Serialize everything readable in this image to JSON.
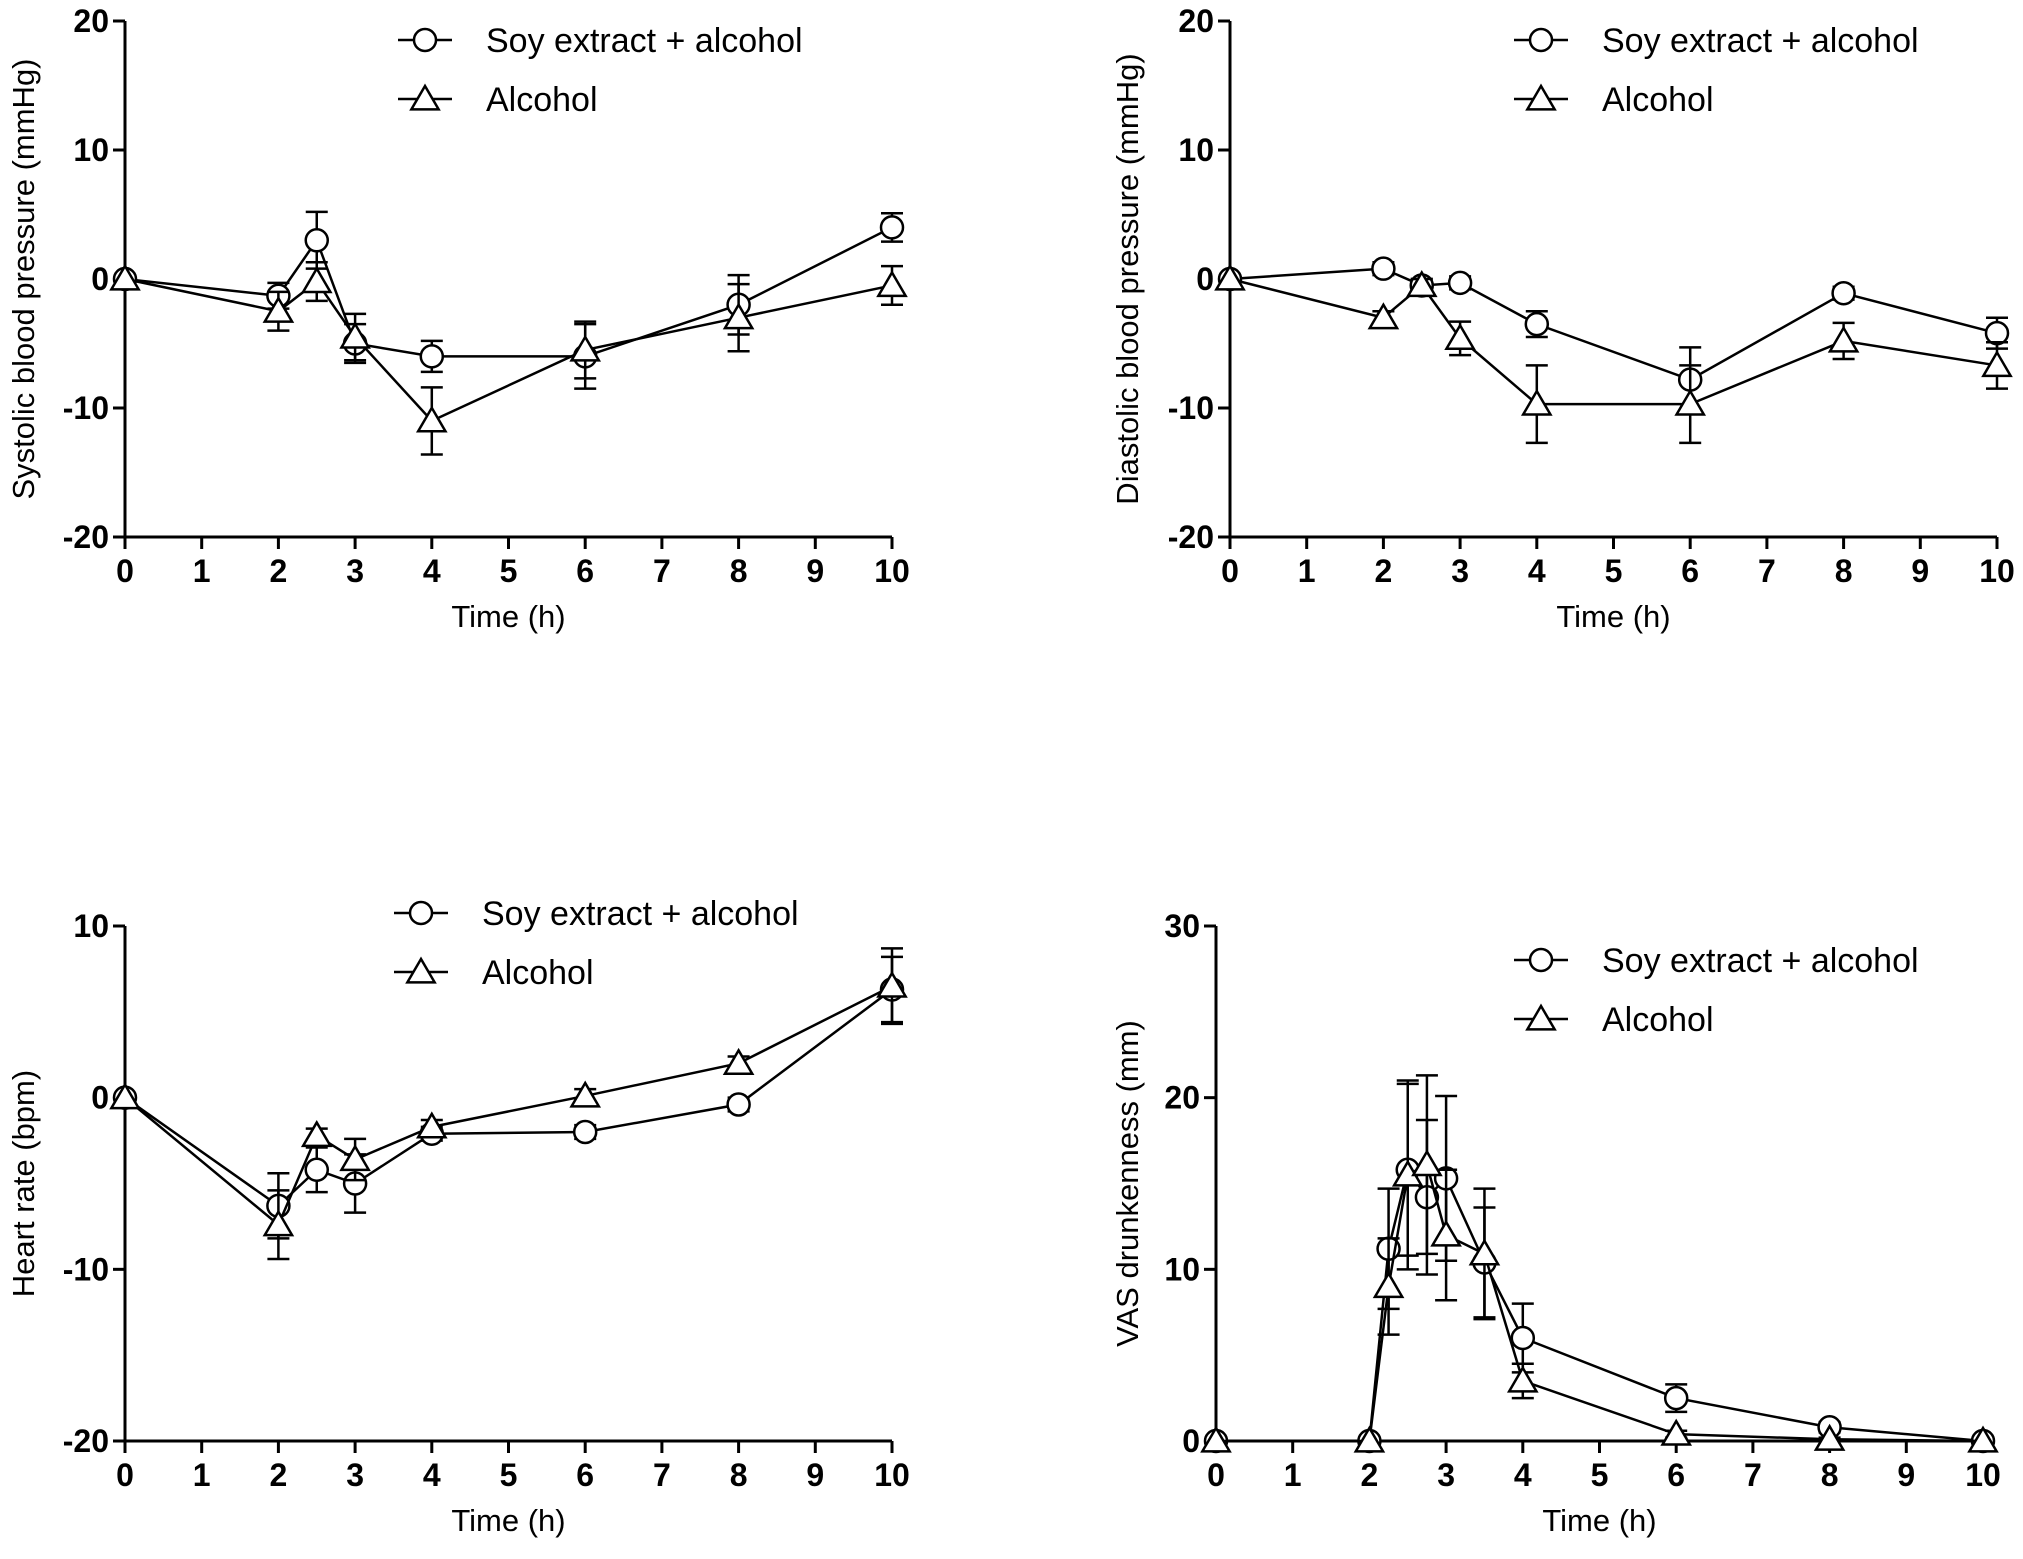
{
  "chart_data": [
    {
      "id": "systolic",
      "type": "line",
      "xlabel": "Time (h)",
      "ylabel": "Systolic blood pressure (mmHg)",
      "ylim": [
        -20,
        20
      ],
      "yticks": [
        -20,
        -10,
        0,
        10,
        20
      ],
      "xlim": [
        0,
        10
      ],
      "xticks": [
        0,
        1,
        2,
        3,
        4,
        5,
        6,
        7,
        8,
        9,
        10
      ],
      "legend": [
        "Soy extract + alcohol",
        "Alcohol"
      ],
      "series": [
        {
          "name": "Soy extract + alcohol",
          "marker": "circle",
          "x": [
            0,
            2,
            2.5,
            3,
            4,
            6,
            8,
            10
          ],
          "y": [
            0,
            -1.3,
            3,
            -5,
            -6,
            -6,
            -2,
            4
          ],
          "err": [
            0,
            1,
            2.2,
            1.5,
            1.2,
            2.5,
            2.3,
            1.1
          ]
        },
        {
          "name": "Alcohol",
          "marker": "triangle",
          "x": [
            0,
            2,
            2.5,
            3,
            4,
            6,
            8,
            10
          ],
          "y": [
            0,
            -2.5,
            -0.2,
            -4.5,
            -11,
            -5.5,
            -3,
            -0.5
          ],
          "err": [
            0,
            1.5,
            1.5,
            1.8,
            2.6,
            2.2,
            2.6,
            1.5
          ]
        }
      ]
    },
    {
      "id": "diastolic",
      "type": "line",
      "xlabel": "Time (h)",
      "ylabel": "Diastolic blood pressure (mmHg)",
      "ylim": [
        -20,
        20
      ],
      "yticks": [
        -20,
        -10,
        0,
        10,
        20
      ],
      "xlim": [
        0,
        10
      ],
      "xticks": [
        0,
        1,
        2,
        3,
        4,
        5,
        6,
        7,
        8,
        9,
        10
      ],
      "legend": [
        "Soy extract + alcohol",
        "Alcohol"
      ],
      "series": [
        {
          "name": "Soy extract + alcohol",
          "marker": "circle",
          "x": [
            0,
            2,
            2.5,
            3,
            4,
            6,
            8,
            10
          ],
          "y": [
            0,
            0.8,
            -0.5,
            -0.3,
            -3.5,
            -7.8,
            -1.1,
            -4.2
          ],
          "err": [
            0,
            0.5,
            0.5,
            0.5,
            1,
            2.5,
            0.5,
            1.2
          ]
        },
        {
          "name": "Alcohol",
          "marker": "triangle",
          "x": [
            0,
            2,
            2.5,
            3,
            4,
            6,
            8,
            10
          ],
          "y": [
            0,
            -3,
            -0.5,
            -4.6,
            -9.7,
            -9.7,
            -4.8,
            -6.7
          ],
          "err": [
            0,
            0.5,
            0.5,
            1.3,
            3,
            3,
            1.4,
            1.8
          ]
        }
      ]
    },
    {
      "id": "heart-rate",
      "type": "line",
      "xlabel": "Time (h)",
      "ylabel": "Heart rate (bpm)",
      "ylim": [
        -20,
        10
      ],
      "yticks": [
        -20,
        -10,
        0,
        10
      ],
      "xlim": [
        0,
        10
      ],
      "xticks": [
        0,
        1,
        2,
        3,
        4,
        5,
        6,
        7,
        8,
        9,
        10
      ],
      "legend": [
        "Soy extract + alcohol",
        "Alcohol"
      ],
      "series": [
        {
          "name": "Soy extract + alcohol",
          "marker": "circle",
          "x": [
            0,
            2,
            2.5,
            3,
            4,
            6,
            8,
            10
          ],
          "y": [
            0,
            -6.3,
            -4.2,
            -5,
            -2.1,
            -2,
            -0.4,
            6.3
          ],
          "err": [
            0,
            1.9,
            1.3,
            1.7,
            0.4,
            0.4,
            0.4,
            1.9
          ]
        },
        {
          "name": "Alcohol",
          "marker": "triangle",
          "x": [
            0,
            2,
            2.5,
            3,
            4,
            6,
            8,
            10
          ],
          "y": [
            0,
            -7.4,
            -2.2,
            -3.6,
            -1.7,
            0.1,
            2,
            6.5
          ],
          "err": [
            0,
            2,
            0.4,
            1.2,
            0.4,
            0.4,
            0.4,
            2.2
          ]
        }
      ]
    },
    {
      "id": "vas-drunkenness",
      "type": "line",
      "xlabel": "Time (h)",
      "ylabel": "VAS drunkenness (mm)",
      "ylim": [
        0,
        30
      ],
      "yticks": [
        0,
        10,
        20,
        30
      ],
      "xlim": [
        0,
        10
      ],
      "xticks": [
        0,
        1,
        2,
        3,
        4,
        5,
        6,
        7,
        8,
        9,
        10
      ],
      "legend": [
        "Soy extract + alcohol",
        "Alcohol"
      ],
      "series": [
        {
          "name": "Soy extract + alcohol",
          "marker": "circle",
          "x": [
            0,
            2,
            2.25,
            2.5,
            2.75,
            3,
            3.5,
            4,
            6,
            8,
            10
          ],
          "y": [
            0,
            0,
            11.2,
            15.8,
            14.2,
            15.3,
            10.4,
            6,
            2.5,
            0.8,
            0
          ],
          "err": [
            0,
            0,
            3.5,
            5,
            4.5,
            4.8,
            3.2,
            2,
            0.8,
            0.3,
            0
          ]
        },
        {
          "name": "Alcohol",
          "marker": "triangle",
          "x": [
            0,
            2,
            2.25,
            2.5,
            2.75,
            3,
            3.5,
            4,
            6,
            8,
            10
          ],
          "y": [
            0,
            0,
            9,
            15.5,
            16.1,
            12,
            10.9,
            3.5,
            0.4,
            0.1,
            0
          ],
          "err": [
            0,
            0,
            2.8,
            5.5,
            5.2,
            3.8,
            3.8,
            1,
            0.2,
            0.1,
            0
          ]
        }
      ]
    }
  ]
}
